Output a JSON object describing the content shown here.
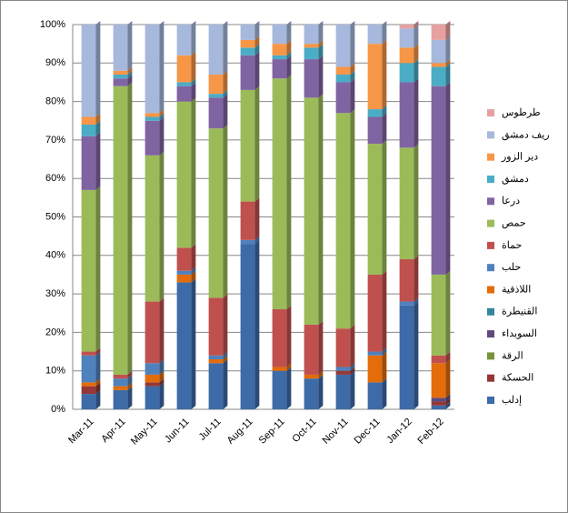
{
  "chart_data": {
    "type": "stacked_bar_100",
    "categories": [
      "Mar-11",
      "Apr-11",
      "May-11",
      "Jun-11",
      "Jul-11",
      "Aug-11",
      "Sep-11",
      "Oct-11",
      "Nov-11",
      "Dec-11",
      "Jan-12",
      "Feb-12"
    ],
    "series": [
      {
        "name": "إدلب",
        "color": "#3d6ba8",
        "values": [
          4,
          5,
          6,
          33,
          12,
          43,
          10,
          8,
          9,
          7,
          27,
          1
        ]
      },
      {
        "name": "الحسكة",
        "color": "#953735",
        "values": [
          2,
          0,
          1,
          0,
          0,
          0,
          0,
          0,
          1,
          0,
          0,
          1
        ]
      },
      {
        "name": "الرقة",
        "color": "#77933c",
        "values": [
          0,
          0,
          0,
          0,
          0,
          0,
          0,
          0,
          0,
          0,
          0,
          0
        ]
      },
      {
        "name": "السويداء",
        "color": "#604a7b",
        "values": [
          0,
          0,
          0,
          0,
          0,
          0,
          0,
          0,
          0,
          0,
          0,
          1
        ]
      },
      {
        "name": "القنيطرة",
        "color": "#31859c",
        "values": [
          0,
          0,
          0,
          0,
          0,
          0,
          0,
          0,
          0,
          0,
          0,
          0
        ]
      },
      {
        "name": "اللاذقية",
        "color": "#e46c0a",
        "values": [
          1,
          1,
          2,
          2,
          1,
          0,
          1,
          1,
          0,
          7,
          0,
          9
        ]
      },
      {
        "name": "حلب",
        "color": "#4f81bd",
        "values": [
          7,
          2,
          3,
          1,
          1,
          1,
          0,
          0,
          1,
          1,
          1,
          0
        ]
      },
      {
        "name": "حماة",
        "color": "#c0504d",
        "values": [
          1,
          1,
          16,
          6,
          15,
          10,
          15,
          13,
          10,
          20,
          11,
          2
        ]
      },
      {
        "name": "حمص",
        "color": "#9bbb59",
        "values": [
          42,
          75,
          38,
          38,
          44,
          29,
          60,
          59,
          56,
          34,
          29,
          21
        ]
      },
      {
        "name": "درعا",
        "color": "#8064a2",
        "values": [
          14,
          2,
          9,
          4,
          8,
          9,
          5,
          10,
          8,
          7,
          17,
          49
        ]
      },
      {
        "name": "دمشق",
        "color": "#4bacc6",
        "values": [
          3,
          1,
          1,
          1,
          1,
          2,
          1,
          3,
          2,
          2,
          5,
          5
        ]
      },
      {
        "name": "دير الزور",
        "color": "#f79646",
        "values": [
          2,
          1,
          1,
          7,
          5,
          2,
          3,
          1,
          2,
          17,
          4,
          1
        ]
      },
      {
        "name": "ريف دمشق",
        "color": "#a6b8dc",
        "values": [
          24,
          12,
          23,
          8,
          13,
          4,
          5,
          5,
          11,
          5,
          5,
          6
        ]
      },
      {
        "name": "طرطوس",
        "color": "#e6a0a0",
        "values": [
          0,
          0,
          0,
          0,
          0,
          0,
          0,
          0,
          0,
          0,
          1,
          4
        ]
      }
    ],
    "ylim": [
      0,
      100
    ],
    "yticks": [
      {
        "value": 0,
        "label": "0%"
      },
      {
        "value": 10,
        "label": "10%"
      },
      {
        "value": 20,
        "label": "20%"
      },
      {
        "value": 30,
        "label": "30%"
      },
      {
        "value": 40,
        "label": "40%"
      },
      {
        "value": 50,
        "label": "50%"
      },
      {
        "value": 60,
        "label": "60%"
      },
      {
        "value": 70,
        "label": "70%"
      },
      {
        "value": 80,
        "label": "80%"
      },
      {
        "value": 90,
        "label": "90%"
      },
      {
        "value": 100,
        "label": "100%"
      }
    ],
    "grid": true
  }
}
